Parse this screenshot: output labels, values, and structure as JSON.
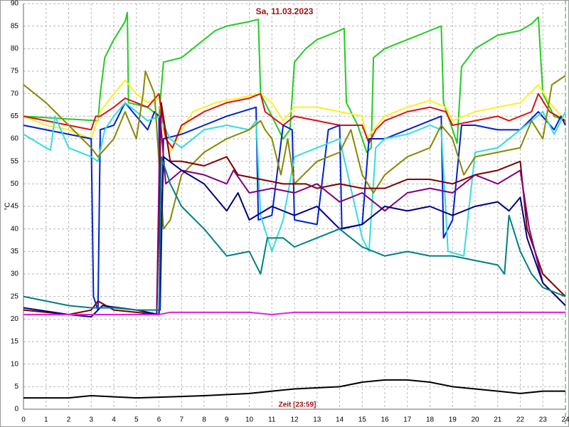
{
  "chart_data": {
    "type": "line",
    "title": "Sa, 11.03.2023",
    "x_label": "Zeit [23:59]",
    "y_label": "°C",
    "xlim": [
      0,
      24
    ],
    "ylim": [
      0,
      90
    ],
    "xticks": [
      0,
      1,
      2,
      3,
      4,
      5,
      6,
      7,
      8,
      9,
      10,
      11,
      12,
      13,
      14,
      15,
      16,
      17,
      18,
      19,
      20,
      21,
      22,
      23,
      24
    ],
    "yticks": [
      0,
      5,
      10,
      15,
      20,
      25,
      30,
      35,
      40,
      45,
      50,
      55,
      60,
      65,
      70,
      75,
      80,
      85,
      90
    ],
    "grid": true,
    "series": [
      {
        "color": "#22cc22",
        "x": [
          0,
          3.3,
          3.4,
          3.6,
          4,
          4.5,
          4.6,
          4.65,
          5.5,
          6,
          6.2,
          7,
          7.5,
          8.5,
          9,
          10,
          10.4,
          10.5,
          11,
          11.5,
          11.8,
          12,
          12.5,
          13,
          14,
          14.2,
          14.3,
          14.8,
          15.2,
          15.4,
          15.5,
          16,
          17,
          18,
          18.5,
          18.6,
          19,
          19.2,
          19.4,
          20,
          21,
          22,
          22.5,
          22.8,
          23,
          23.5,
          24
        ],
        "values": [
          65,
          64,
          70,
          78,
          82,
          86,
          88,
          68,
          67,
          65,
          77,
          78,
          80,
          84,
          85,
          86,
          86.5,
          70,
          65,
          60,
          62,
          77,
          80,
          82,
          84,
          84.5,
          68,
          63,
          57,
          58,
          78,
          80,
          82,
          84,
          85,
          68,
          62,
          59,
          76,
          80,
          83,
          84,
          85.5,
          87,
          70,
          65,
          64
        ]
      },
      {
        "color": "#ffee22",
        "x": [
          0,
          1,
          2,
          2.5,
          3,
          3.4,
          4,
          4.5,
          5,
          5.5,
          6,
          6.2,
          6.5,
          7,
          7.5,
          8.5,
          9.5,
          10.5,
          11,
          11.5,
          12,
          13,
          14,
          15,
          15.2,
          15.5,
          16,
          17,
          18,
          18.7,
          19,
          19.5,
          20,
          21,
          22,
          22.8,
          23.3,
          24
        ],
        "values": [
          65,
          63,
          62,
          61,
          60,
          66,
          70,
          73,
          70,
          68,
          69,
          62,
          57,
          62,
          66,
          68,
          69,
          70,
          68,
          64,
          67,
          67,
          66,
          65,
          60,
          62,
          65,
          67,
          68.5,
          67,
          64,
          65,
          66,
          67,
          68,
          72,
          68,
          64
        ]
      },
      {
        "color": "#dd1111",
        "x": [
          0,
          1,
          2,
          3,
          3.2,
          3.4,
          4,
          4.5,
          5,
          5.5,
          6,
          6.3,
          6.6,
          7,
          8,
          9,
          10,
          10.5,
          10.7,
          11.5,
          12,
          13,
          14,
          15,
          15.3,
          15.6,
          16,
          17,
          18,
          18.7,
          19,
          20,
          21,
          21.5,
          22.5,
          22.8,
          23.3,
          24
        ],
        "values": [
          65,
          64,
          63,
          62,
          65,
          65,
          67,
          69,
          68,
          67,
          70,
          60,
          58,
          63,
          66,
          68,
          69,
          70,
          66,
          63,
          65,
          64,
          63,
          63,
          59,
          62,
          64,
          66,
          67,
          66,
          63,
          64,
          65,
          64,
          66,
          70,
          66,
          64
        ]
      },
      {
        "color": "#0022cc",
        "x": [
          0,
          1,
          2,
          3,
          3.1,
          3.3,
          3.4,
          4,
          4.5,
          5,
          5.5,
          5.8,
          6,
          6.05,
          6.2,
          7,
          8,
          9,
          10.3,
          10.4,
          11,
          11.5,
          11.9,
          12,
          13,
          13.5,
          14,
          14.1,
          15,
          15.3,
          16,
          17,
          18.5,
          18.6,
          19,
          19.4,
          20,
          21,
          22,
          22.8,
          23.5,
          23.8,
          24
        ],
        "values": [
          63,
          62,
          61,
          60,
          25,
          22,
          62,
          63,
          68,
          65,
          62,
          66,
          65,
          22,
          60,
          61,
          63,
          65,
          67,
          42,
          43,
          63,
          62,
          42,
          41,
          62,
          63,
          40,
          41,
          60,
          60,
          62,
          65,
          38,
          42,
          63,
          63,
          62,
          62,
          66,
          62,
          65,
          63
        ]
      },
      {
        "color": "#33dddd",
        "x": [
          0,
          1,
          1.2,
          1.4,
          2,
          3,
          3.3,
          3.6,
          4,
          4.5,
          5.5,
          6,
          6.5,
          7,
          8,
          9,
          10,
          10.3,
          10.5,
          11,
          11.5,
          12,
          13,
          14,
          15,
          15.3,
          15.6,
          16,
          17,
          18,
          18.5,
          18.8,
          19.5,
          20,
          21,
          22,
          23,
          23.5,
          24
        ],
        "values": [
          61,
          58,
          57.5,
          65,
          58,
          56,
          55,
          62,
          65,
          68,
          64,
          65,
          60,
          58,
          62,
          63,
          62,
          64,
          43,
          35,
          42,
          56,
          58,
          60,
          38,
          35,
          58,
          60,
          61,
          63,
          62,
          35,
          34,
          57,
          58,
          62,
          66,
          61,
          66
        ]
      },
      {
        "color": "#888800",
        "x": [
          0,
          1,
          2,
          3,
          3.3,
          4,
          4.5,
          5,
          5.3,
          5.4,
          5.8,
          6.2,
          6.5,
          7,
          8,
          9,
          10,
          10.5,
          10.7,
          11,
          11.4,
          11.7,
          12,
          13,
          14,
          14.5,
          15,
          15.5,
          16,
          17,
          18,
          18.5,
          19,
          19.5,
          20,
          21,
          22,
          22.5,
          23,
          23.4,
          24
        ],
        "values": [
          72,
          68,
          63,
          58,
          56,
          60,
          66,
          60,
          70,
          75,
          70,
          40,
          42,
          52,
          57,
          60,
          62,
          64,
          62,
          60,
          52,
          60,
          50,
          55,
          57,
          62,
          52,
          48,
          52,
          56,
          58,
          63,
          60,
          52,
          56,
          57,
          58,
          64,
          60,
          72,
          74
        ]
      },
      {
        "color": "#800000",
        "x": [
          0,
          2,
          3,
          3.3,
          4,
          5,
          5.9,
          6.1,
          6.5,
          7,
          8,
          9,
          9.5,
          10.5,
          11.5,
          12.5,
          13,
          14,
          15,
          16,
          17,
          18,
          19,
          20,
          21,
          22,
          22.3,
          23,
          24
        ],
        "values": [
          22,
          21,
          22,
          24,
          22,
          21.5,
          21,
          68,
          55,
          55,
          54,
          56,
          52,
          51,
          50,
          50,
          49,
          50,
          49,
          49,
          51,
          51,
          50,
          52,
          53,
          55,
          40,
          30,
          25
        ]
      },
      {
        "color": "#800080",
        "x": [
          0,
          5.9,
          6.05,
          6.3,
          7,
          8,
          9,
          9.3,
          10,
          11,
          12,
          13,
          14,
          15,
          15.5,
          16,
          17,
          18,
          19,
          19.5,
          20,
          21,
          22,
          22.4,
          23,
          24
        ],
        "values": [
          21,
          21,
          65,
          50,
          53,
          52,
          50,
          53,
          48,
          49,
          48,
          50,
          46,
          48,
          46,
          44,
          48,
          49,
          48,
          50,
          52,
          50,
          53,
          40,
          28,
          23
        ]
      },
      {
        "color": "#000080",
        "x": [
          0,
          2,
          3,
          3.5,
          5,
          6,
          6.2,
          7,
          8,
          9,
          9.5,
          10,
          11,
          12,
          13,
          14,
          15,
          16,
          17,
          18,
          19,
          20,
          21,
          21.5,
          22,
          22.3,
          23,
          24
        ],
        "values": [
          22.5,
          21,
          20.5,
          23,
          22,
          21,
          56,
          53,
          50,
          44,
          48,
          42,
          45,
          43,
          45,
          40,
          41,
          45,
          44,
          45,
          43,
          45,
          46,
          44,
          47,
          38,
          28,
          23
        ]
      },
      {
        "color": "#008080",
        "x": [
          0,
          1,
          2,
          3,
          4,
          5,
          6,
          6.1,
          6.5,
          7,
          8,
          9,
          10,
          10.5,
          10.8,
          11.5,
          12,
          13,
          14,
          15,
          16,
          17,
          18,
          19,
          20,
          21,
          21.3,
          21.5,
          22,
          22.5,
          23,
          24
        ],
        "values": [
          25,
          24,
          23,
          22.5,
          22.5,
          22,
          22,
          56,
          50,
          45,
          40,
          34,
          35,
          30,
          38,
          38,
          36,
          38,
          40,
          36,
          34,
          35,
          34,
          34,
          33,
          32,
          30,
          43,
          35,
          30,
          27,
          25
        ]
      },
      {
        "color": "#dd22dd",
        "x": [
          0,
          6,
          6.5,
          10,
          11,
          12,
          24
        ],
        "values": [
          21,
          21,
          21.5,
          21.5,
          21,
          21.5,
          21.5
        ]
      },
      {
        "color": "#000000",
        "x": [
          0,
          2,
          3,
          5,
          8,
          10,
          12,
          14,
          15,
          16,
          17,
          18,
          19,
          20,
          21,
          22,
          23,
          24
        ],
        "values": [
          2.5,
          2.5,
          3,
          2.5,
          3,
          3.5,
          4.5,
          5,
          6,
          6.5,
          6.5,
          6,
          5,
          4.5,
          4,
          3.5,
          4,
          4
        ]
      }
    ]
  }
}
